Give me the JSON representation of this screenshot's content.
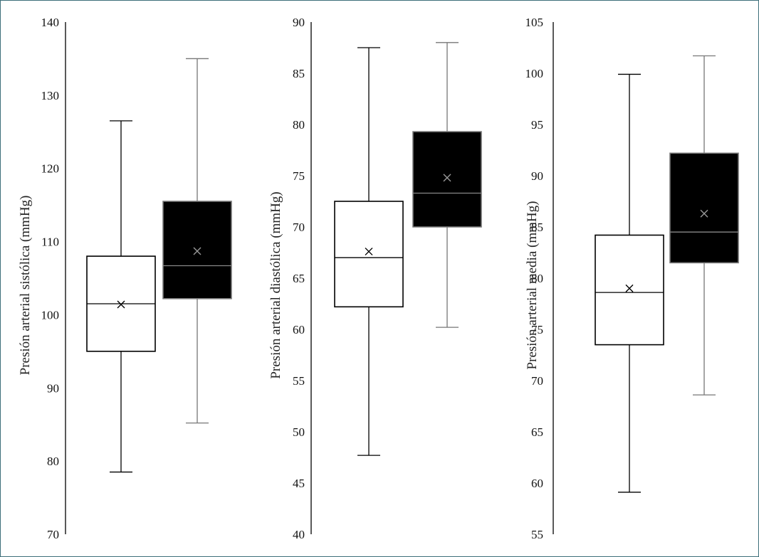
{
  "chart_data": [
    {
      "type": "box",
      "ylabel": "Presión arterial sistólica (mmHg)",
      "ylim": [
        70,
        140
      ],
      "ticks": [
        70,
        80,
        90,
        100,
        110,
        120,
        130,
        140
      ],
      "boxes": [
        {
          "min": 78.5,
          "q1": 95.0,
          "median": 101.5,
          "q3": 108.0,
          "max": 126.5,
          "mean": 101.4,
          "fill": "#ffffff",
          "stroke": "#000000",
          "median_color": "#000000",
          "marker_color": "#000000"
        },
        {
          "min": 85.2,
          "q1": 102.2,
          "median": 106.7,
          "q3": 115.5,
          "max": 135.0,
          "mean": 108.7,
          "fill": "#000000",
          "stroke": "#777777",
          "median_color": "#888888",
          "marker_color": "#999999"
        }
      ]
    },
    {
      "type": "box",
      "ylabel": "Presión arterial diastólica (mmHg)",
      "ylim": [
        40,
        90
      ],
      "ticks": [
        40,
        45,
        50,
        55,
        60,
        65,
        70,
        75,
        80,
        85,
        90
      ],
      "boxes": [
        {
          "min": 47.7,
          "q1": 62.2,
          "median": 67.0,
          "q3": 72.5,
          "max": 87.5,
          "mean": 67.6,
          "fill": "#ffffff",
          "stroke": "#000000",
          "median_color": "#000000",
          "marker_color": "#000000"
        },
        {
          "min": 60.2,
          "q1": 70.0,
          "median": 73.3,
          "q3": 79.3,
          "max": 88.0,
          "mean": 74.8,
          "fill": "#000000",
          "stroke": "#777777",
          "median_color": "#888888",
          "marker_color": "#999999"
        }
      ]
    },
    {
      "type": "box",
      "ylabel": "Presión arterial media (mmHg)",
      "ylim": [
        55,
        105
      ],
      "ticks": [
        55,
        60,
        65,
        70,
        75,
        80,
        85,
        90,
        95,
        100,
        105
      ],
      "boxes": [
        {
          "min": 59.1,
          "q1": 73.5,
          "median": 78.6,
          "q3": 84.2,
          "max": 99.9,
          "mean": 79.0,
          "fill": "#ffffff",
          "stroke": "#000000",
          "median_color": "#000000",
          "marker_color": "#000000"
        },
        {
          "min": 68.6,
          "q1": 81.5,
          "median": 84.5,
          "q3": 92.2,
          "max": 101.7,
          "mean": 86.3,
          "fill": "#000000",
          "stroke": "#777777",
          "median_color": "#888888",
          "marker_color": "#999999"
        }
      ]
    }
  ]
}
